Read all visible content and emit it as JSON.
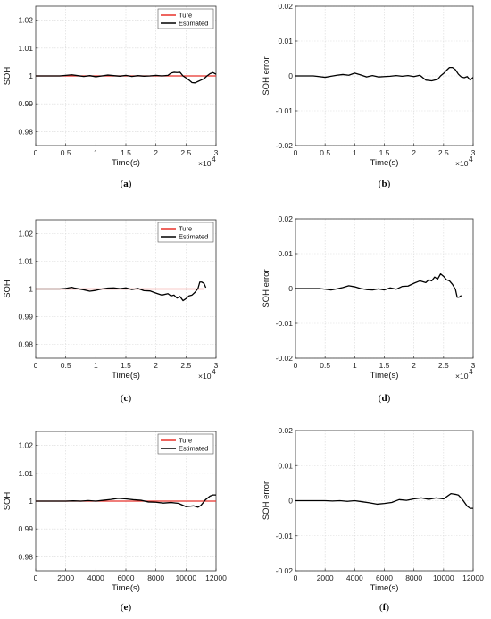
{
  "chart_data": [
    {
      "panel": "a",
      "type": "line",
      "caption": "(a)",
      "xlabel": "Time(s)",
      "ylabel": "SOH",
      "xlim": [
        0,
        30000
      ],
      "ylim": [
        0.975,
        1.025
      ],
      "xticks": [
        0,
        5000,
        10000,
        15000,
        20000,
        25000,
        30000
      ],
      "xtick_labels": [
        "0",
        "0.5",
        "1",
        "1.5",
        "2",
        "2.5",
        "3"
      ],
      "x_multiplier": "×10",
      "x_multiplier_exp": "4",
      "yticks": [
        0.98,
        0.99,
        1.0,
        1.01,
        1.02
      ],
      "ytick_labels": [
        "0.98",
        "0.99",
        "1",
        "1.01",
        "1.02"
      ],
      "grid": true,
      "legend": "top-right",
      "series": [
        {
          "name": "Ture",
          "color": "#e8322a",
          "x": [
            0,
            30000
          ],
          "y": [
            1.0,
            1.0
          ]
        },
        {
          "name": "Estimated",
          "color": "#000000",
          "x": [
            0,
            1000,
            2000,
            3000,
            4000,
            5000,
            6000,
            7000,
            8000,
            9000,
            10000,
            11000,
            12000,
            13000,
            14000,
            15000,
            16000,
            17000,
            18000,
            19000,
            20000,
            21000,
            22000,
            22500,
            23000,
            23500,
            24000,
            24500,
            25000,
            25500,
            26000,
            26500,
            27000,
            27500,
            28000,
            28500,
            29000,
            29500,
            30000
          ],
          "y": [
            1.0,
            1.0,
            1.0,
            1.0,
            1.0,
            1.0002,
            1.0004,
            1.0001,
            0.9998,
            1.0001,
            0.9997,
            1.0,
            1.0003,
            1.0001,
            0.9999,
            1.0002,
            0.9998,
            1.0001,
            0.9999,
            1.0,
            1.0002,
            1.0,
            1.0002,
            1.001,
            1.0013,
            1.0012,
            1.0013,
            1.0,
            0.9993,
            0.9985,
            0.9976,
            0.9975,
            0.998,
            0.9985,
            0.999,
            1.0,
            1.0008,
            1.0012,
            1.0006
          ]
        }
      ]
    },
    {
      "panel": "b",
      "type": "line",
      "caption": "(b)",
      "xlabel": "Time(s)",
      "ylabel": "SOH error",
      "xlim": [
        0,
        30000
      ],
      "ylim": [
        -0.02,
        0.02
      ],
      "xticks": [
        0,
        5000,
        10000,
        15000,
        20000,
        25000,
        30000
      ],
      "xtick_labels": [
        "0",
        "0.5",
        "1",
        "1.5",
        "2",
        "2.5",
        "3"
      ],
      "x_multiplier": "×10",
      "x_multiplier_exp": "4",
      "yticks": [
        -0.02,
        -0.01,
        0,
        0.01,
        0.02
      ],
      "ytick_labels": [
        "-0.02",
        "-0.01",
        "0",
        "0.01",
        "0.02"
      ],
      "grid": true,
      "series": [
        {
          "color": "#000000",
          "x": [
            0,
            1000,
            2000,
            3000,
            4000,
            5000,
            6000,
            7000,
            8000,
            9000,
            10000,
            11000,
            12000,
            13000,
            14000,
            15000,
            16000,
            17000,
            18000,
            19000,
            20000,
            21000,
            22000,
            23000,
            24000,
            24500,
            25000,
            25500,
            26000,
            26500,
            27000,
            27500,
            28000,
            28500,
            29000,
            29500,
            30000
          ],
          "y": [
            0.0,
            0.0,
            0.0,
            0.0,
            -0.0002,
            -0.0004,
            -0.0001,
            0.0002,
            0.0004,
            0.0002,
            0.0008,
            0.0003,
            -0.0003,
            0.0001,
            -0.0003,
            -0.0002,
            -0.0001,
            0.0001,
            -0.0001,
            0.0001,
            -0.0002,
            0.0002,
            -0.0012,
            -0.0014,
            -0.001,
            0.0,
            0.0007,
            0.0016,
            0.0024,
            0.0024,
            0.0018,
            0.0005,
            -0.0003,
            -0.0005,
            -0.0002,
            -0.0012,
            -0.0004
          ]
        }
      ]
    },
    {
      "panel": "c",
      "type": "line",
      "caption": "(c)",
      "xlabel": "Time(s)",
      "ylabel": "SOH",
      "xlim": [
        0,
        30000
      ],
      "ylim": [
        0.975,
        1.025
      ],
      "xticks": [
        0,
        5000,
        10000,
        15000,
        20000,
        25000,
        30000
      ],
      "xtick_labels": [
        "0",
        "0.5",
        "1",
        "1.5",
        "2",
        "2.5",
        "3"
      ],
      "x_multiplier": "×10",
      "x_multiplier_exp": "4",
      "yticks": [
        0.98,
        0.99,
        1.0,
        1.01,
        1.02
      ],
      "ytick_labels": [
        "0.98",
        "0.99",
        "1",
        "1.01",
        "1.02"
      ],
      "grid": true,
      "legend": "top-right",
      "series": [
        {
          "name": "Ture",
          "color": "#e8322a",
          "x": [
            0,
            28000
          ],
          "y": [
            1.0,
            1.0
          ]
        },
        {
          "name": "Estimated",
          "color": "#000000",
          "x": [
            0,
            1000,
            2000,
            3000,
            4000,
            5000,
            5500,
            6000,
            6500,
            7000,
            8000,
            9000,
            10000,
            11000,
            12000,
            13000,
            14000,
            15000,
            16000,
            17000,
            18000,
            19000,
            20000,
            21000,
            22000,
            22500,
            23000,
            23500,
            24000,
            24500,
            25000,
            25500,
            26000,
            26500,
            27000,
            27300,
            27600,
            28000,
            28300
          ],
          "y": [
            1.0,
            1.0,
            1.0,
            1.0,
            1.0,
            1.0002,
            1.0004,
            1.0006,
            1.0003,
            1.0001,
            0.9997,
            0.9992,
            0.9995,
            1.0,
            1.0003,
            1.0004,
            1.0001,
            1.0004,
            0.9998,
            1.0002,
            0.9994,
            0.9993,
            0.9985,
            0.9978,
            0.9983,
            0.9975,
            0.9978,
            0.9967,
            0.9973,
            0.9958,
            0.9965,
            0.9975,
            0.9978,
            0.9988,
            1.0002,
            1.0025,
            1.0025,
            1.002,
            1.0005
          ]
        }
      ]
    },
    {
      "panel": "d",
      "type": "line",
      "caption": "(d)",
      "xlabel": "Time(s)",
      "ylabel": "SOH error",
      "xlim": [
        0,
        30000
      ],
      "ylim": [
        -0.02,
        0.02
      ],
      "xticks": [
        0,
        5000,
        10000,
        15000,
        20000,
        25000,
        30000
      ],
      "xtick_labels": [
        "0",
        "0.5",
        "1",
        "1.5",
        "2",
        "2.5",
        "3"
      ],
      "x_multiplier": "×10",
      "x_multiplier_exp": "4",
      "yticks": [
        -0.02,
        -0.01,
        0,
        0.01,
        0.02
      ],
      "ytick_labels": [
        "-0.02",
        "-0.01",
        "0",
        "0.01",
        "0.02"
      ],
      "grid": true,
      "series": [
        {
          "color": "#000000",
          "x": [
            0,
            1000,
            2000,
            3000,
            4000,
            5000,
            6000,
            7000,
            8000,
            9000,
            10000,
            11000,
            12000,
            13000,
            14000,
            15000,
            16000,
            17000,
            18000,
            19000,
            20000,
            21000,
            22000,
            22500,
            23000,
            23500,
            24000,
            24500,
            25000,
            25500,
            26000,
            26500,
            27000,
            27300,
            27600,
            28000
          ],
          "y": [
            0.0,
            0.0,
            0.0,
            0.0,
            0.0,
            -0.0002,
            -0.0004,
            -0.0001,
            0.0003,
            0.0008,
            0.0005,
            0.0,
            -0.0003,
            -0.0004,
            -0.0001,
            -0.0004,
            0.0002,
            -0.0002,
            0.0006,
            0.0007,
            0.0015,
            0.0022,
            0.0017,
            0.0025,
            0.0022,
            0.0033,
            0.0027,
            0.0042,
            0.0035,
            0.0025,
            0.0022,
            0.0012,
            -0.0002,
            -0.0025,
            -0.0025,
            -0.002
          ]
        }
      ]
    },
    {
      "panel": "e",
      "type": "line",
      "caption": "(e)",
      "xlabel": "Time(s)",
      "ylabel": "SOH",
      "xlim": [
        0,
        12000
      ],
      "ylim": [
        0.975,
        1.025
      ],
      "xticks": [
        0,
        2000,
        4000,
        6000,
        8000,
        10000,
        12000
      ],
      "xtick_labels": [
        "0",
        "2000",
        "4000",
        "6000",
        "8000",
        "10000",
        "12000"
      ],
      "yticks": [
        0.98,
        0.99,
        1.0,
        1.01,
        1.02
      ],
      "ytick_labels": [
        "0.98",
        "0.99",
        "1",
        "1.01",
        "1.02"
      ],
      "grid": true,
      "legend": "top-right",
      "series": [
        {
          "name": "Ture",
          "color": "#e8322a",
          "x": [
            0,
            12000
          ],
          "y": [
            1.0,
            1.0
          ]
        },
        {
          "name": "Estimated",
          "color": "#000000",
          "x": [
            0,
            500,
            1000,
            1500,
            2000,
            2500,
            3000,
            3500,
            4000,
            4500,
            5000,
            5500,
            6000,
            6500,
            7000,
            7500,
            8000,
            8500,
            9000,
            9500,
            10000,
            10500,
            10800,
            11000,
            11300,
            11600,
            11800,
            12000
          ],
          "y": [
            1.0,
            1.0,
            1.0,
            1.0,
            1.0,
            1.0001,
            1.0,
            1.0002,
            1.0,
            1.0003,
            1.0006,
            1.001,
            1.0008,
            1.0005,
            1.0003,
            0.9997,
            0.9996,
            0.9993,
            0.9995,
            0.9992,
            0.998,
            0.9983,
            0.9978,
            0.9985,
            1.0005,
            1.0018,
            1.0022,
            1.0022
          ]
        }
      ]
    },
    {
      "panel": "f",
      "type": "line",
      "caption": "(f)",
      "xlabel": "Time(s)",
      "ylabel": "SOH error",
      "xlim": [
        0,
        12000
      ],
      "ylim": [
        -0.02,
        0.02
      ],
      "xticks": [
        0,
        2000,
        4000,
        6000,
        8000,
        10000,
        12000
      ],
      "xtick_labels": [
        "0",
        "2000",
        "4000",
        "6000",
        "8000",
        "10000",
        "12000"
      ],
      "yticks": [
        -0.02,
        -0.01,
        0,
        0.01,
        0.02
      ],
      "ytick_labels": [
        "-0.02",
        "-0.01",
        "0",
        "0.01",
        "0.02"
      ],
      "grid": true,
      "series": [
        {
          "color": "#000000",
          "x": [
            0,
            500,
            1000,
            1500,
            2000,
            2500,
            3000,
            3500,
            4000,
            4500,
            5000,
            5500,
            6000,
            6500,
            7000,
            7500,
            8000,
            8500,
            9000,
            9500,
            10000,
            10500,
            10800,
            11000,
            11300,
            11600,
            11800,
            12000
          ],
          "y": [
            0.0,
            0.0,
            0.0,
            0.0,
            0.0,
            -0.0001,
            0.0,
            -0.0002,
            0.0,
            -0.0003,
            -0.0006,
            -0.001,
            -0.0008,
            -0.0005,
            0.0003,
            0.0001,
            0.0005,
            0.0008,
            0.0004,
            0.0008,
            0.0005,
            0.002,
            0.0018,
            0.0016,
            0.0002,
            -0.0016,
            -0.0022,
            -0.0022
          ]
        }
      ]
    }
  ]
}
